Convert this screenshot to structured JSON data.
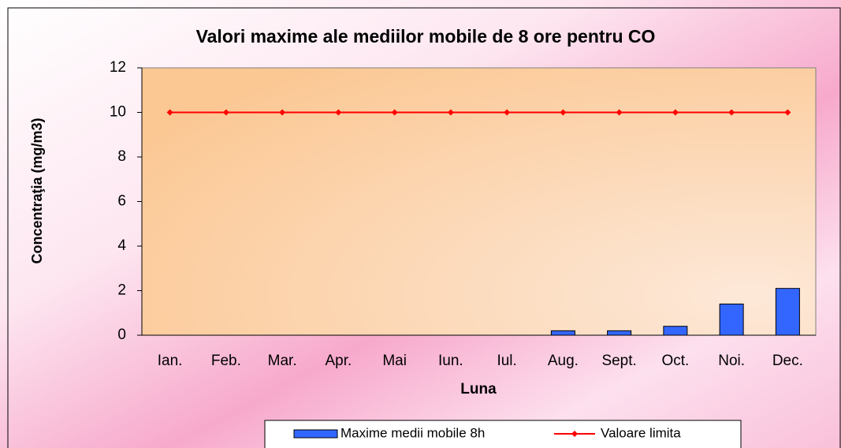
{
  "chart_data": {
    "type": "bar",
    "title": "Valori maxime ale mediilor mobile de 8 ore pentru CO",
    "x_label": "Luna",
    "y_label": "Concentraţia  (mg/m3)",
    "categories": [
      "Ian.",
      "Feb.",
      "Mar.",
      "Apr.",
      "Mai",
      "Iun.",
      "Iul.",
      "Aug.",
      "Sept.",
      "Oct.",
      "Noi.",
      "Dec."
    ],
    "series": [
      {
        "name": "Maxime medii mobile 8h",
        "type": "bar",
        "color": "#3366ff",
        "values": [
          0,
          0,
          0,
          0,
          0,
          0,
          0,
          0.2,
          0.2,
          0.4,
          1.4,
          2.1
        ]
      },
      {
        "name": "Valoare limita",
        "type": "line",
        "color": "#ff0000",
        "values": [
          10,
          10,
          10,
          10,
          10,
          10,
          10,
          10,
          10,
          10,
          10,
          10
        ]
      }
    ],
    "ylim": [
      0,
      12
    ],
    "yticks": [
      0,
      2,
      4,
      6,
      8,
      10,
      12
    ],
    "legend": "bottom"
  }
}
